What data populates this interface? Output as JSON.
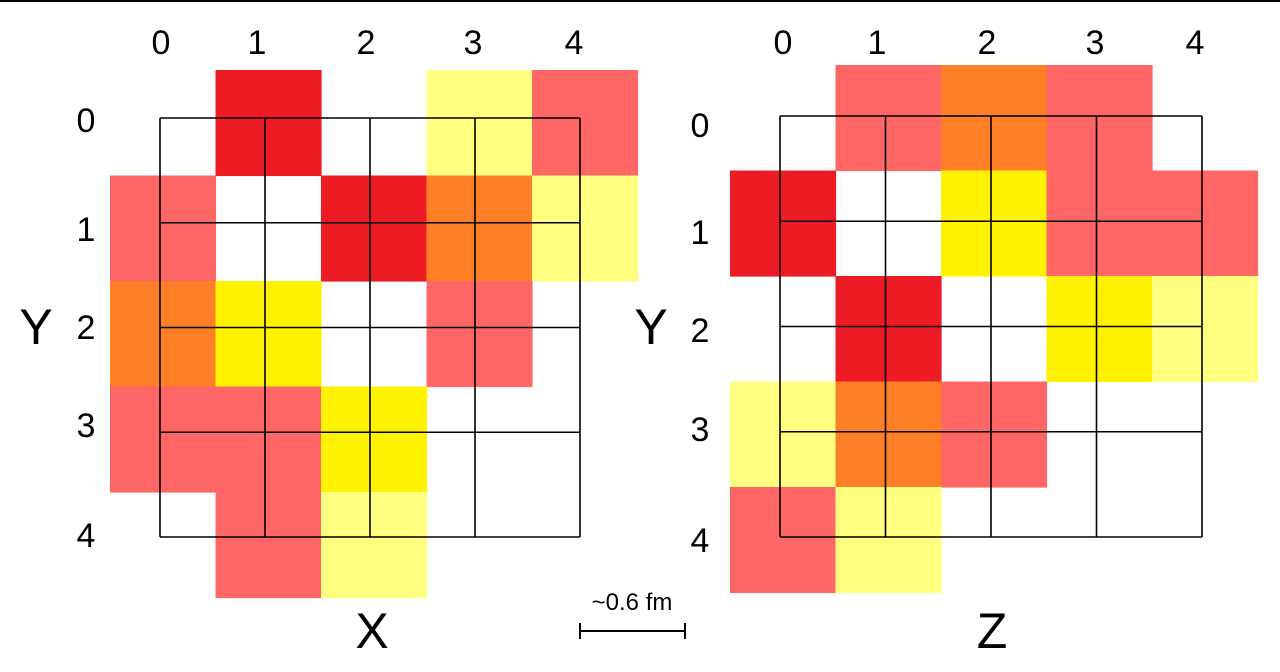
{
  "colors": {
    "red": "#ED1C24",
    "pink": "#FF6666",
    "orange": "#FF7F27",
    "yellow": "#FFF200",
    "light-yellow": "#FFFF80"
  },
  "panels": [
    {
      "id": "left",
      "x_axis_label": "X",
      "y_axis_label": "Y",
      "col_ticks": [
        "0",
        "1",
        "2",
        "3",
        "4"
      ],
      "row_ticks": [
        "0",
        "1",
        "2",
        "3",
        "4"
      ],
      "cells": [
        {
          "row": 0,
          "col": 1,
          "color": "red"
        },
        {
          "row": 0,
          "col": 3,
          "color": "light-yellow"
        },
        {
          "row": 0,
          "col": 4,
          "color": "pink"
        },
        {
          "row": 1,
          "col": 0,
          "color": "pink"
        },
        {
          "row": 1,
          "col": 2,
          "color": "red"
        },
        {
          "row": 1,
          "col": 3,
          "color": "orange"
        },
        {
          "row": 1,
          "col": 4,
          "color": "light-yellow"
        },
        {
          "row": 2,
          "col": 0,
          "color": "orange"
        },
        {
          "row": 2,
          "col": 1,
          "color": "yellow"
        },
        {
          "row": 2,
          "col": 3,
          "color": "pink"
        },
        {
          "row": 3,
          "col": 0,
          "color": "pink"
        },
        {
          "row": 3,
          "col": 1,
          "color": "pink"
        },
        {
          "row": 3,
          "col": 2,
          "color": "yellow"
        },
        {
          "row": 4,
          "col": 1,
          "color": "pink"
        },
        {
          "row": 4,
          "col": 2,
          "color": "light-yellow"
        }
      ]
    },
    {
      "id": "right",
      "x_axis_label": "Z",
      "y_axis_label": "Y",
      "col_ticks": [
        "0",
        "1",
        "2",
        "3",
        "4"
      ],
      "row_ticks": [
        "0",
        "1",
        "2",
        "3",
        "4"
      ],
      "cells": [
        {
          "row": 0,
          "col": 1,
          "color": "pink"
        },
        {
          "row": 0,
          "col": 2,
          "color": "orange"
        },
        {
          "row": 0,
          "col": 3,
          "color": "pink"
        },
        {
          "row": 1,
          "col": 0,
          "color": "red"
        },
        {
          "row": 1,
          "col": 2,
          "color": "yellow"
        },
        {
          "row": 1,
          "col": 3,
          "color": "pink"
        },
        {
          "row": 1,
          "col": 4,
          "color": "pink"
        },
        {
          "row": 2,
          "col": 1,
          "color": "red"
        },
        {
          "row": 2,
          "col": 3,
          "color": "yellow"
        },
        {
          "row": 2,
          "col": 4,
          "color": "light-yellow"
        },
        {
          "row": 3,
          "col": 0,
          "color": "light-yellow"
        },
        {
          "row": 3,
          "col": 1,
          "color": "orange"
        },
        {
          "row": 3,
          "col": 2,
          "color": "pink"
        },
        {
          "row": 4,
          "col": 0,
          "color": "pink"
        },
        {
          "row": 4,
          "col": 1,
          "color": "light-yellow"
        }
      ]
    }
  ],
  "scale_bar": {
    "label": "~0.6 fm"
  }
}
